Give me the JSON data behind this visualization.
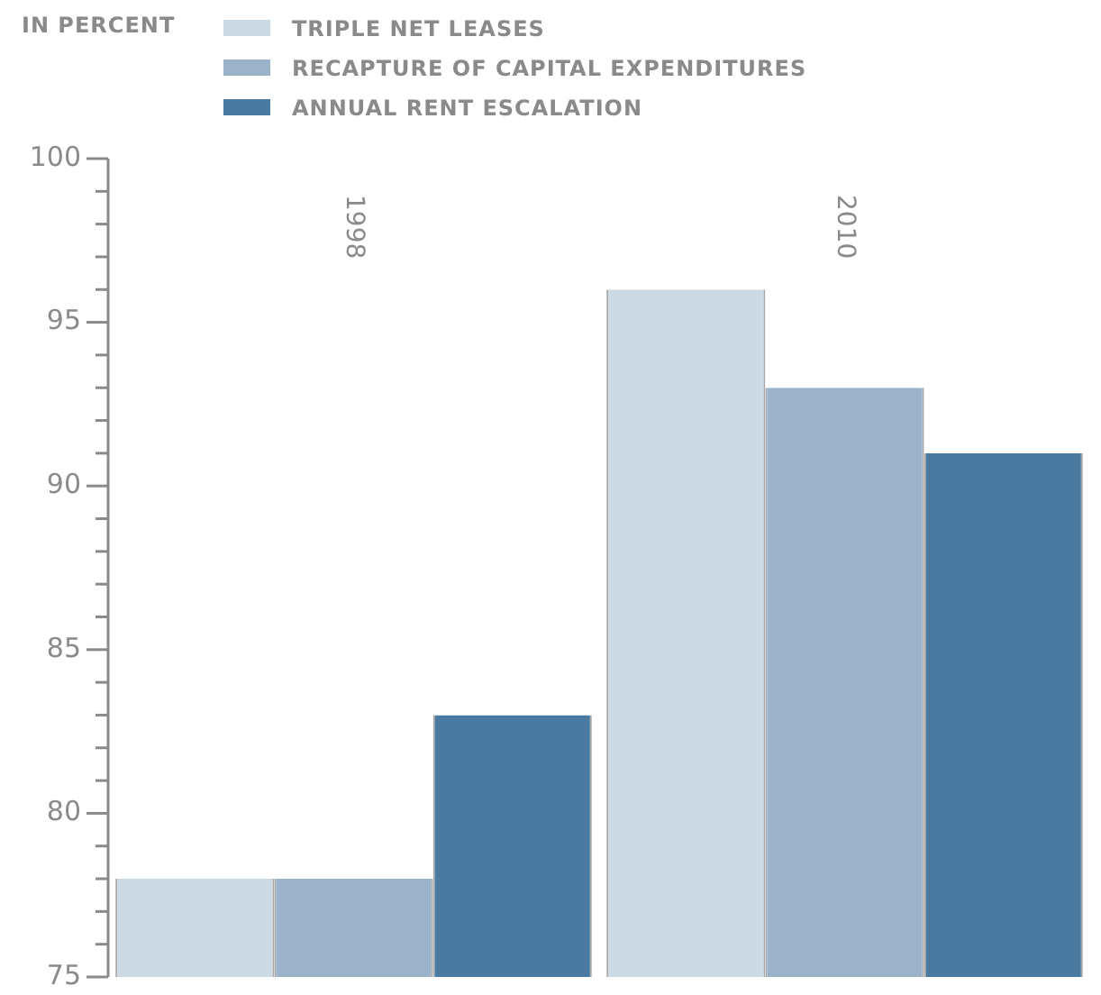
{
  "chart_data": {
    "type": "bar",
    "ylabel": "IN PERCENT",
    "categories": [
      "1998",
      "2010"
    ],
    "series": [
      {
        "name": "TRIPLE NET LEASES",
        "color": "#ccdae5",
        "values": [
          78,
          96
        ]
      },
      {
        "name": "RECAPTURE OF CAPITAL EXPENDITURES",
        "color": "#9bb3ca",
        "values": [
          78,
          93
        ]
      },
      {
        "name": "ANNUAL RENT ESCALATION",
        "color": "#4a7aa0",
        "values": [
          83,
          91
        ]
      }
    ],
    "ylim": [
      75,
      100
    ],
    "yticks": [
      75,
      {
        "value": 76,
        "label": null
      },
      {
        "value": 77,
        "label": null
      },
      {
        "value": 78,
        "label": null
      },
      {
        "value": 79,
        "label": null
      },
      80,
      {
        "value": 81,
        "label": null
      },
      {
        "value": 82,
        "label": null
      },
      {
        "value": 83,
        "label": null
      },
      {
        "value": 84,
        "label": null
      },
      85,
      {
        "value": 86,
        "label": null
      },
      {
        "value": 87,
        "label": null
      },
      {
        "value": 88,
        "label": null
      },
      {
        "value": 89,
        "label": null
      },
      90,
      {
        "value": 91,
        "label": null
      },
      {
        "value": 92,
        "label": null
      },
      {
        "value": 93,
        "label": null
      },
      {
        "value": 94,
        "label": null
      },
      95,
      {
        "value": 96,
        "label": null
      },
      {
        "value": 97,
        "label": null
      },
      {
        "value": 98,
        "label": null
      },
      {
        "value": 99,
        "label": null
      },
      100
    ],
    "legend": "top",
    "grid": false
  }
}
